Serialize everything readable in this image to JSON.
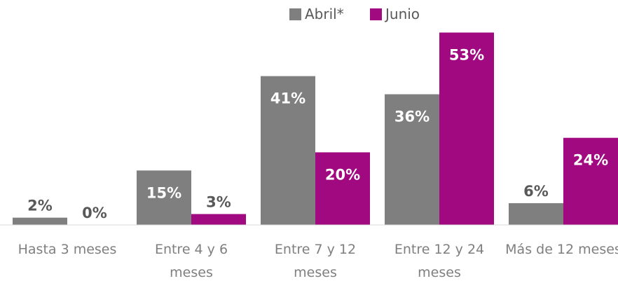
{
  "chart_data": {
    "type": "bar",
    "categories": [
      "Hasta 3 meses",
      "Entre 4 y 6 meses",
      "Entre 7 y 12 meses",
      "Entre 12 y 24 meses",
      "Más de 12 meses"
    ],
    "series": [
      {
        "name": "Abril*",
        "color": "#7f7f7f",
        "values": [
          2,
          15,
          41,
          36,
          6
        ],
        "value_labels": [
          "2%",
          "15%",
          "41%",
          "36%",
          "6%"
        ]
      },
      {
        "name": "Junio",
        "color": "#a0097f",
        "values": [
          0,
          3,
          20,
          53,
          24
        ],
        "value_labels": [
          "0%",
          "3%",
          "20%",
          "53%",
          "24%"
        ]
      }
    ]
  }
}
